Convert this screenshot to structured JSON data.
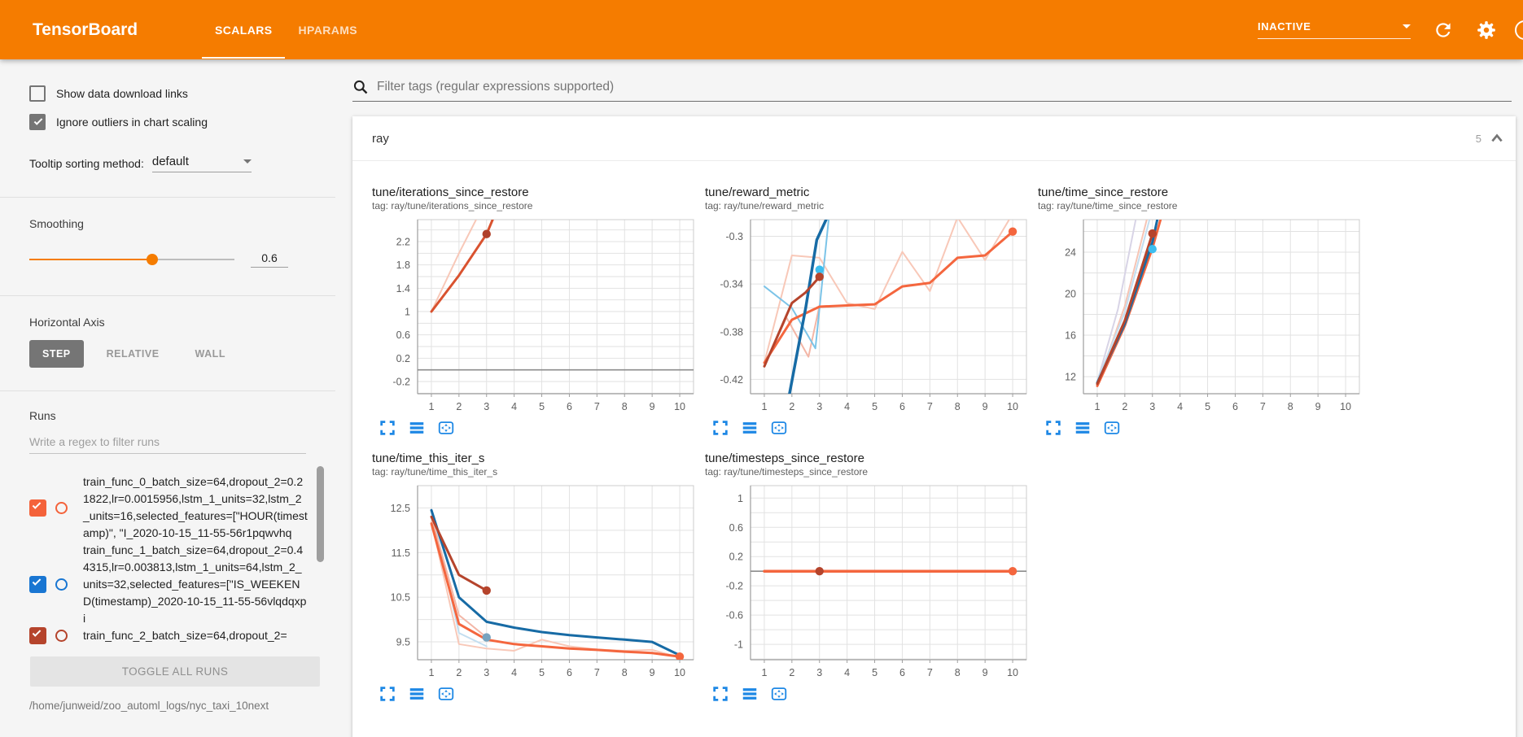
{
  "header": {
    "title": "TensorBoard",
    "tabs": [
      {
        "label": "SCALARS",
        "active": true
      },
      {
        "label": "HPARAMS",
        "active": false
      }
    ],
    "status_value": "INACTIVE",
    "icons": [
      "refresh-icon",
      "settings-gear-icon",
      "help-circle-icon"
    ],
    "colors": {
      "bar": "#f57c00"
    }
  },
  "sidebar": {
    "checkboxes": [
      {
        "label": "Show data download links",
        "checked": false
      },
      {
        "label": "Ignore outliers in chart scaling",
        "checked": true
      }
    ],
    "tooltip_sorting": {
      "label": "Tooltip sorting method:",
      "value": "default"
    },
    "smoothing": {
      "label": "Smoothing",
      "value": "0.6",
      "percent": 60
    },
    "horizontal_axis": {
      "label": "Horizontal Axis",
      "options": [
        {
          "label": "STEP",
          "active": true
        },
        {
          "label": "RELATIVE",
          "active": false
        },
        {
          "label": "WALL",
          "active": false
        }
      ]
    },
    "runs": {
      "label": "Runs",
      "filter_placeholder": "Write a regex to filter runs",
      "items": [
        {
          "name": "train_func_0_batch_size=64,dropout_2=0.21822,lr=0.0015956,lstm_1_units=32,lstm_2_units=16,selected_features=[\"HOUR(timestamp)\", \"I_2020-10-15_11-55-56r1pqwvhq",
          "checked": true,
          "color": "#f4623a"
        },
        {
          "name": "train_func_1_batch_size=64,dropout_2=0.44315,lr=0.003813,lstm_1_units=64,lstm_2_units=32,selected_features=[\"IS_WEEKEND(timestamp)_2020-10-15_11-55-56vlqdqxpi",
          "checked": true,
          "color": "#1976d2"
        },
        {
          "name": "train_func_2_batch_size=64,dropout_2=",
          "checked": true,
          "color": "#b5442c"
        }
      ],
      "toggle_all_label": "TOGGLE ALL RUNS",
      "log_path": "/home/junweid/zoo_automl_logs/nyc_taxi_10next"
    }
  },
  "main": {
    "filter_placeholder": "Filter tags (regular expressions supported)",
    "section": {
      "title": "ray",
      "count": "5"
    },
    "chart_action_icons": [
      "expand-icon",
      "runs-selector-icon",
      "fit-domain-icon"
    ]
  },
  "chart_data": [
    {
      "type": "line",
      "title": "tune/iterations_since_restore",
      "tag": "tag: ray/tune/iterations_since_restore",
      "xlim": [
        0.5,
        10.5
      ],
      "xticks": [
        1,
        2,
        3,
        4,
        5,
        6,
        7,
        8,
        9,
        10
      ],
      "ylim": [
        -0.409,
        2.577
      ],
      "ygrid_step": 0.2,
      "zero_line": true,
      "yticks": [
        {
          "v": 2.2,
          "label": "2.2"
        },
        {
          "v": 1.8,
          "label": "1.8"
        },
        {
          "v": 1.4,
          "label": "1.4"
        },
        {
          "v": 1,
          "label": "1"
        },
        {
          "v": 0.6,
          "label": "0.6"
        },
        {
          "v": 0.2,
          "label": "0.2"
        },
        {
          "v": -0.2,
          "label": "-0.2"
        }
      ],
      "series": [
        {
          "name": "run0-raw",
          "color": "#f8c8b8",
          "width": 2,
          "points": [
            [
              1,
              1
            ],
            [
              2,
              2
            ],
            [
              2.62,
              2.577
            ]
          ]
        },
        {
          "name": "runs-smoothed",
          "color": "#d9522f",
          "width": 3,
          "points": [
            [
              1,
              1
            ],
            [
              2,
              1.62
            ],
            [
              3,
              2.33
            ],
            [
              3.22,
              2.577
            ]
          ]
        }
      ],
      "dots": [
        {
          "x": 3,
          "y": 2.33,
          "color": "#b0402a"
        }
      ]
    },
    {
      "type": "line",
      "title": "tune/reward_metric",
      "tag": "tag: ray/tune/reward_metric",
      "xlim": [
        0.5,
        10.5
      ],
      "xticks": [
        1,
        2,
        3,
        4,
        5,
        6,
        7,
        8,
        9,
        10
      ],
      "ylim": [
        -0.432,
        -0.286
      ],
      "ygrid_step": 0.02,
      "zero_line": false,
      "yticks": [
        {
          "v": -0.3,
          "label": "-0.3"
        },
        {
          "v": -0.34,
          "label": "-0.34"
        },
        {
          "v": -0.38,
          "label": "-0.38"
        },
        {
          "v": -0.42,
          "label": "-0.42"
        }
      ],
      "series": [
        {
          "name": "run0-raw",
          "color": "#f8c8b8",
          "width": 2,
          "points": [
            [
              1,
              -0.406
            ],
            [
              2,
              -0.316
            ],
            [
              3,
              -0.318
            ],
            [
              4,
              -0.356
            ],
            [
              5,
              -0.361
            ],
            [
              6,
              -0.313
            ],
            [
              7,
              -0.346
            ],
            [
              8,
              -0.284
            ],
            [
              9,
              -0.32
            ],
            [
              10,
              -0.281
            ]
          ]
        },
        {
          "name": "run2-raw",
          "color": "#f3b6a6",
          "width": 2,
          "points": [
            [
              1,
              -0.409
            ],
            [
              1.8,
              -0.368
            ],
            [
              2.6,
              -0.401
            ],
            [
              3,
              -0.358
            ]
          ]
        },
        {
          "name": "run1-raw",
          "color": "#7cc4e8",
          "width": 2,
          "points": [
            [
              1,
              -0.342
            ],
            [
              2,
              -0.36
            ],
            [
              2.85,
              -0.394
            ],
            [
              3.35,
              -0.282
            ]
          ]
        },
        {
          "name": "run0-smoothed",
          "color": "#f4663e",
          "width": 3,
          "points": [
            [
              1,
              -0.406
            ],
            [
              2,
              -0.37
            ],
            [
              3,
              -0.359
            ],
            [
              4,
              -0.358
            ],
            [
              5,
              -0.357
            ],
            [
              6,
              -0.342
            ],
            [
              7,
              -0.339
            ],
            [
              8,
              -0.318
            ],
            [
              9,
              -0.316
            ],
            [
              10,
              -0.296
            ]
          ]
        },
        {
          "name": "run1-smoothed",
          "color": "#176ba5",
          "width": 3.5,
          "points": [
            [
              1.88,
              -0.436
            ],
            [
              2.5,
              -0.36
            ],
            [
              2.9,
              -0.303
            ],
            [
              3.32,
              -0.282
            ]
          ]
        },
        {
          "name": "run2-smoothed",
          "color": "#b5442c",
          "width": 3,
          "points": [
            [
              1,
              -0.409
            ],
            [
              2,
              -0.356
            ],
            [
              2.5,
              -0.347
            ],
            [
              3,
              -0.334
            ]
          ]
        }
      ],
      "dots": [
        {
          "x": 3,
          "y": -0.328,
          "color": "#3dbeef"
        },
        {
          "x": 3,
          "y": -0.334,
          "color": "#b5442c"
        },
        {
          "x": 10,
          "y": -0.296,
          "color": "#f4663e"
        }
      ]
    },
    {
      "type": "line",
      "title": "tune/time_since_restore",
      "tag": "tag: ray/tune/time_since_restore",
      "xlim": [
        0.5,
        10.5
      ],
      "xticks": [
        1,
        2,
        3,
        4,
        5,
        6,
        7,
        8,
        9,
        10
      ],
      "ylim": [
        10.35,
        27.14
      ],
      "ygrid_step": 2,
      "zero_line": false,
      "yticks": [
        {
          "v": 24,
          "label": "24"
        },
        {
          "v": 20,
          "label": "20"
        },
        {
          "v": 16,
          "label": "16"
        },
        {
          "v": 12,
          "label": "12"
        }
      ],
      "series": [
        {
          "name": "raw-faint-1",
          "color": "#d8d4e6",
          "width": 2,
          "points": [
            [
              1,
              11.5
            ],
            [
              1.75,
              18.5
            ],
            [
              2.4,
              27.2
            ]
          ]
        },
        {
          "name": "run0-raw",
          "color": "#f6c4b4",
          "width": 2,
          "points": [
            [
              1,
              11.2
            ],
            [
              2,
              18.8
            ],
            [
              2.8,
              27.2
            ]
          ]
        },
        {
          "name": "run1-raw",
          "color": "#c3def0",
          "width": 2,
          "points": [
            [
              1,
              11.6
            ],
            [
              2,
              18.2
            ],
            [
              2.9,
              27.2
            ]
          ]
        },
        {
          "name": "run0-smoothed",
          "color": "#f4663e",
          "width": 3,
          "points": [
            [
              1,
              11.1
            ],
            [
              2,
              16.9
            ],
            [
              3,
              24.4
            ],
            [
              3.3,
              27.2
            ]
          ]
        },
        {
          "name": "run1-smoothed",
          "color": "#176ba5",
          "width": 3,
          "points": [
            [
              1,
              11.4
            ],
            [
              2,
              17.1
            ],
            [
              3,
              25.0
            ],
            [
              3.18,
              27.2
            ]
          ]
        },
        {
          "name": "run2-smoothed",
          "color": "#b5442c",
          "width": 3,
          "points": [
            [
              1,
              11.3
            ],
            [
              2,
              17.4
            ],
            [
              3,
              25.8
            ]
          ]
        }
      ],
      "dots": [
        {
          "x": 3,
          "y": 25.8,
          "color": "#b5442c"
        },
        {
          "x": 3,
          "y": 24.3,
          "color": "#3dbeef"
        }
      ]
    },
    {
      "type": "line",
      "title": "tune/time_this_iter_s",
      "tag": "tag: ray/tune/time_this_iter_s",
      "xlim": [
        0.5,
        10.5
      ],
      "xticks": [
        1,
        2,
        3,
        4,
        5,
        6,
        7,
        8,
        9,
        10
      ],
      "ylim": [
        9.1,
        13.0
      ],
      "ygrid_step": 0.5,
      "zero_line": false,
      "yticks": [
        {
          "v": 12.5,
          "label": "12.5"
        },
        {
          "v": 11.5,
          "label": "11.5"
        },
        {
          "v": 10.5,
          "label": "10.5"
        },
        {
          "v": 9.5,
          "label": "9.5"
        }
      ],
      "series": [
        {
          "name": "run0-raw",
          "color": "#f8c8b8",
          "width": 2,
          "points": [
            [
              1,
              12.2
            ],
            [
              2,
              9.45
            ],
            [
              3,
              9.35
            ],
            [
              4,
              9.3
            ],
            [
              5,
              9.55
            ],
            [
              6,
              9.4
            ],
            [
              7,
              9.33
            ],
            [
              8,
              9.3
            ],
            [
              9,
              9.32
            ],
            [
              10,
              9.15
            ]
          ]
        },
        {
          "name": "run1-raw",
          "color": "#c3def0",
          "width": 2,
          "points": [
            [
              1,
              12.45
            ],
            [
              2,
              9.7
            ],
            [
              3,
              9.4
            ]
          ]
        },
        {
          "name": "run2-raw",
          "color": "#f3b6a6",
          "width": 2,
          "points": [
            [
              1,
              12.3
            ],
            [
              2,
              10.1
            ],
            [
              3,
              9.6
            ]
          ]
        },
        {
          "name": "run1-smoothed",
          "color": "#176ba5",
          "width": 3,
          "points": [
            [
              1,
              12.45
            ],
            [
              2,
              10.5
            ],
            [
              3,
              9.95
            ],
            [
              4,
              9.82
            ],
            [
              5,
              9.72
            ],
            [
              6,
              9.65
            ],
            [
              7,
              9.6
            ],
            [
              8,
              9.55
            ],
            [
              9,
              9.5
            ],
            [
              10,
              9.2
            ]
          ]
        },
        {
          "name": "run0-smoothed",
          "color": "#f4663e",
          "width": 3,
          "points": [
            [
              1,
              12.15
            ],
            [
              2,
              9.9
            ],
            [
              3,
              9.55
            ],
            [
              4,
              9.45
            ],
            [
              5,
              9.4
            ],
            [
              6,
              9.35
            ],
            [
              7,
              9.32
            ],
            [
              8,
              9.28
            ],
            [
              9,
              9.25
            ],
            [
              10,
              9.17
            ]
          ]
        },
        {
          "name": "run2-smoothed",
          "color": "#b5442c",
          "width": 3,
          "points": [
            [
              1,
              12.3
            ],
            [
              2,
              11.0
            ],
            [
              3,
              10.65
            ]
          ]
        }
      ],
      "dots": [
        {
          "x": 3,
          "y": 10.65,
          "color": "#b5442c"
        },
        {
          "x": 3,
          "y": 9.6,
          "color": "#76a3bf"
        },
        {
          "x": 10,
          "y": 9.17,
          "color": "#f4663e"
        }
      ]
    },
    {
      "type": "line",
      "title": "tune/timesteps_since_restore",
      "tag": "tag: ray/tune/timesteps_since_restore",
      "xlim": [
        0.5,
        10.5
      ],
      "xticks": [
        1,
        2,
        3,
        4,
        5,
        6,
        7,
        8,
        9,
        10
      ],
      "ylim": [
        -1.21,
        1.17
      ],
      "ygrid_step": 0.2,
      "zero_line": true,
      "yticks": [
        {
          "v": 1,
          "label": "1"
        },
        {
          "v": 0.6,
          "label": "0.6"
        },
        {
          "v": 0.2,
          "label": "0.2"
        },
        {
          "v": -0.2,
          "label": "-0.2"
        },
        {
          "v": -0.6,
          "label": "-0.6"
        },
        {
          "v": -1,
          "label": "-1"
        }
      ],
      "series": [
        {
          "name": "runs-smoothed",
          "color": "#f4663e",
          "width": 3.5,
          "points": [
            [
              1,
              0
            ],
            [
              10,
              0
            ]
          ]
        }
      ],
      "dots": [
        {
          "x": 3,
          "y": 0,
          "color": "#b5442c"
        },
        {
          "x": 10,
          "y": 0,
          "color": "#f4663e"
        }
      ]
    }
  ]
}
